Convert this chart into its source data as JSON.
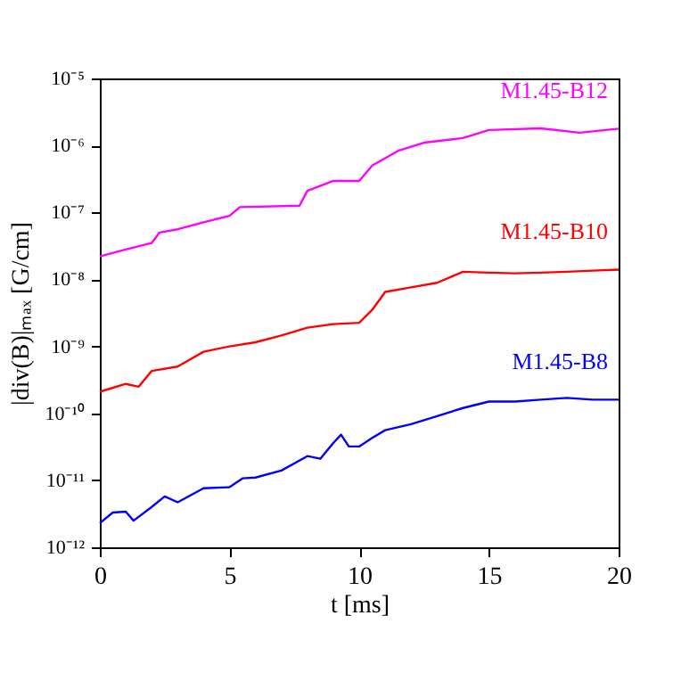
{
  "chart_data": {
    "type": "line",
    "xlabel": "t [ms]",
    "ylabel": "|div(B)|ₘₐₓ [G/cm]",
    "log": "y",
    "grid": false,
    "marker": "none",
    "line_style": "solid",
    "xlim": [
      0,
      20
    ],
    "xticks": [
      0,
      5,
      10,
      15,
      20
    ],
    "ylim": [
      1e-12,
      1e-05
    ],
    "yticks": [
      {
        "value": 1e-12,
        "label": "10⁻¹²"
      },
      {
        "value": 1e-11,
        "label": "10⁻¹¹"
      },
      {
        "value": 1e-10,
        "label": "10⁻¹⁰"
      },
      {
        "value": 1e-09,
        "label": "10⁻⁹"
      },
      {
        "value": 1e-08,
        "label": "10⁻⁸"
      },
      {
        "value": 1e-07,
        "label": "10⁻⁷"
      },
      {
        "value": 1e-06,
        "label": "10⁻⁶"
      },
      {
        "value": 1e-05,
        "label": "10⁻⁵"
      }
    ],
    "series": [
      {
        "name": "M1.45-B12",
        "color": "#ff00ff",
        "x": [
          0,
          1,
          2,
          2.3,
          3,
          4,
          5,
          5.4,
          7.7,
          8,
          9,
          10,
          10.5,
          11.5,
          12.5,
          14,
          15,
          17,
          18.5,
          20
        ],
        "values": [
          2.2e-08,
          2.8e-08,
          3.5e-08,
          5e-08,
          5.6e-08,
          7.1e-08,
          8.9e-08,
          1.2e-07,
          1.26e-07,
          2.1e-07,
          2.95e-07,
          2.95e-07,
          5e-07,
          8.3e-07,
          1.1e-06,
          1.29e-06,
          1.7e-06,
          1.8e-06,
          1.55e-06,
          1.78e-06
        ]
      },
      {
        "name": "M1.45-B10",
        "color": "#ff0000",
        "x": [
          0,
          1,
          1.5,
          2,
          3,
          4,
          5,
          6,
          7,
          8,
          9,
          10,
          10.5,
          11,
          12,
          13,
          14,
          15,
          16,
          17,
          18,
          19,
          20
        ],
        "values": [
          2.1e-10,
          2.75e-10,
          2.5e-10,
          4.3e-10,
          5e-10,
          8.3e-10,
          1e-09,
          1.15e-09,
          1.45e-09,
          1.9e-09,
          2.15e-09,
          2.25e-09,
          3.5e-09,
          6.5e-09,
          7.6e-09,
          8.9e-09,
          1.3e-08,
          1.26e-08,
          1.23e-08,
          1.26e-08,
          1.3e-08,
          1.35e-08,
          1.4e-08
        ]
      },
      {
        "name": "M1.45-B8",
        "color": "#0000ff",
        "x": [
          0,
          0.5,
          1,
          1.3,
          2,
          2.5,
          3,
          4,
          5,
          5.5,
          6,
          7,
          8,
          8.5,
          9,
          9.3,
          9.6,
          10,
          10.5,
          11,
          12,
          13,
          14,
          15,
          16,
          17,
          18,
          19,
          20
        ],
        "values": [
          2.3e-12,
          3.3e-12,
          3.4e-12,
          2.5e-12,
          4e-12,
          5.75e-12,
          4.7e-12,
          7.6e-12,
          7.9e-12,
          1.07e-11,
          1.1e-11,
          1.4e-11,
          2.3e-11,
          2.1e-11,
          3.6e-11,
          4.8e-11,
          3.2e-11,
          3.2e-11,
          4.3e-11,
          5.6e-11,
          6.9e-11,
          9.1e-11,
          1.2e-10,
          1.5e-10,
          1.5e-10,
          1.6e-10,
          1.7e-10,
          1.6e-10,
          1.6e-10
        ]
      }
    ]
  }
}
